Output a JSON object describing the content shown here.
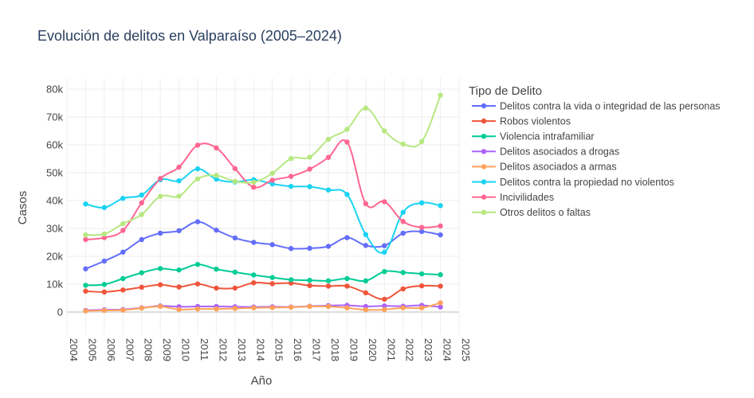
{
  "chart_data": {
    "type": "line",
    "title": "Evolución de delitos en Valparaíso (2005–2024)",
    "xlabel": "Año",
    "ylabel": "Casos",
    "legend_title": "Tipo de Delito",
    "legend_placement": "right",
    "grid": true,
    "xlim": [
      2004,
      2025
    ],
    "ylim": [
      -8000,
      84000
    ],
    "x_ticks": [
      2004,
      2005,
      2006,
      2007,
      2008,
      2009,
      2010,
      2011,
      2012,
      2013,
      2014,
      2015,
      2016,
      2017,
      2018,
      2019,
      2020,
      2021,
      2022,
      2023,
      2024,
      2025
    ],
    "y_ticks": [
      0,
      10000,
      20000,
      30000,
      40000,
      50000,
      60000,
      70000,
      80000
    ],
    "y_tick_labels": [
      "0",
      "10k",
      "20k",
      "30k",
      "40k",
      "50k",
      "60k",
      "70k",
      "80k"
    ],
    "x": [
      2005,
      2006,
      2007,
      2008,
      2009,
      2010,
      2011,
      2012,
      2013,
      2014,
      2015,
      2016,
      2017,
      2018,
      2019,
      2020,
      2021,
      2022,
      2023,
      2024
    ],
    "series": [
      {
        "name": "Delitos contra la vida o integridad de las personas",
        "color": "#636efa",
        "values": [
          15500,
          18300,
          21500,
          26000,
          28300,
          29200,
          32400,
          29400,
          26600,
          25000,
          24200,
          22800,
          22900,
          23600,
          26700,
          23900,
          23800,
          28300,
          28900,
          27700
        ]
      },
      {
        "name": "Robos violentos",
        "color": "#ef553b",
        "values": [
          7500,
          7200,
          7900,
          8900,
          9800,
          9000,
          10100,
          8600,
          8600,
          10500,
          10200,
          10400,
          9500,
          9300,
          9300,
          6900,
          4600,
          8300,
          9400,
          9300
        ]
      },
      {
        "name": "Violencia intrafamiliar",
        "color": "#00cc96",
        "values": [
          9600,
          9900,
          12000,
          14100,
          15600,
          15100,
          17100,
          15400,
          14300,
          13300,
          12400,
          11600,
          11400,
          11200,
          12000,
          11200,
          14500,
          14200,
          13700,
          13400
        ]
      },
      {
        "name": "Delitos asociados a drogas",
        "color": "#ab63fa",
        "values": [
          600,
          800,
          900,
          1500,
          2200,
          1900,
          2000,
          2000,
          1900,
          1800,
          1900,
          1800,
          2100,
          2300,
          2400,
          2000,
          2200,
          2100,
          2400,
          1800
        ]
      },
      {
        "name": "Delitos asociados a armas",
        "color": "#ffa15a",
        "values": [
          400,
          600,
          700,
          1400,
          2000,
          900,
          1100,
          1100,
          1300,
          1500,
          1600,
          1700,
          2000,
          2000,
          1500,
          800,
          900,
          1500,
          1500,
          3300
        ]
      },
      {
        "name": "Delitos contra la propiedad no violentos",
        "color": "#19d3f3",
        "values": [
          38800,
          37500,
          40800,
          42000,
          47500,
          47100,
          51400,
          47700,
          46700,
          47500,
          46000,
          45100,
          45000,
          43800,
          42200,
          27800,
          21500,
          35800,
          39200,
          38200
        ]
      },
      {
        "name": "Incivilidades",
        "color": "#ff6692",
        "values": [
          26000,
          26700,
          29300,
          39200,
          47900,
          52000,
          59900,
          58900,
          51500,
          44800,
          47300,
          48700,
          51300,
          55500,
          61000,
          38900,
          39600,
          32500,
          30400,
          30900
        ]
      },
      {
        "name": "Otros delitos o faltas",
        "color": "#b6e880",
        "values": [
          27700,
          28000,
          31700,
          35000,
          41500,
          41600,
          47800,
          49000,
          46900,
          46600,
          49800,
          55100,
          55600,
          62000,
          65600,
          73200,
          65000,
          60300,
          61200,
          77800
        ]
      }
    ]
  }
}
